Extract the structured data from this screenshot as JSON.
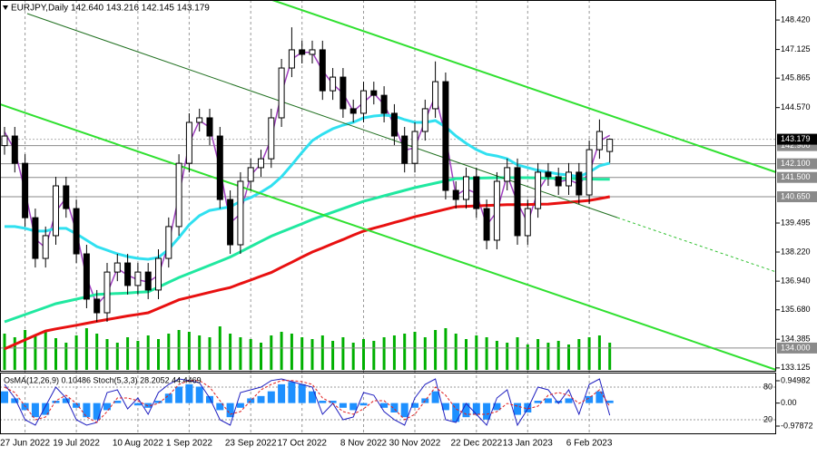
{
  "chart_data": {
    "type": "candlestick",
    "title": "EURJPY,Daily 142.640 143.216 142.145 143.179",
    "categories": [
      null,
      null,
      "27 Jun 2022",
      null,
      null,
      null,
      null,
      "19 Jul 2022",
      null,
      null,
      null,
      null,
      null,
      "10 Aug 2022",
      null,
      null,
      null,
      null,
      "1 Sep 2022",
      null,
      null,
      null,
      null,
      null,
      "23 Sep 2022",
      null,
      null,
      null,
      null,
      "17 Oct 2022",
      null,
      null,
      null,
      null,
      null,
      "8 Nov 2022",
      null,
      null,
      null,
      null,
      "30 Nov 2022",
      null,
      null,
      null,
      null,
      null,
      "22 Dec 2022",
      null,
      null,
      null,
      null,
      "13 Jan 2023",
      null,
      null,
      null,
      null,
      null,
      "6 Feb 2023",
      null,
      null
    ],
    "open": [
      142.9,
      143.32,
      142.12,
      139.73,
      137.94,
      138.94,
      141.13,
      140.13,
      138.14,
      136.15,
      135.55,
      137.34,
      137.74,
      136.75,
      137.34,
      136.55,
      137.94,
      139.34,
      142.12,
      143.92,
      144.12,
      143.32,
      140.53,
      138.54,
      141.33,
      141.93,
      142.32,
      144.12,
      146.31,
      147.11,
      146.91,
      147.11,
      145.31,
      145.91,
      144.52,
      144.32,
      145.31,
      145.11,
      144.32,
      143.32,
      142.12,
      143.52,
      144.52,
      145.71,
      140.93,
      140.53,
      141.53,
      140.13,
      138.74,
      141.33,
      141.93,
      138.94,
      140.13,
      141.73,
      141.53,
      141.13,
      141.73,
      140.73,
      142.72,
      142.64
    ],
    "high": [
      143.72,
      143.72,
      142.52,
      140.13,
      139.34,
      141.53,
      141.53,
      140.53,
      138.54,
      136.55,
      137.74,
      138.14,
      138.14,
      137.74,
      137.74,
      138.34,
      139.74,
      142.52,
      144.32,
      144.52,
      144.52,
      143.72,
      140.93,
      141.73,
      142.33,
      142.72,
      144.52,
      146.71,
      148.1,
      147.51,
      147.51,
      147.51,
      146.31,
      146.31,
      144.92,
      145.71,
      145.71,
      145.51,
      144.72,
      143.72,
      143.92,
      144.92,
      146.6,
      146.11,
      141.33,
      141.93,
      141.93,
      140.53,
      141.73,
      142.33,
      142.33,
      140.53,
      142.13,
      142.13,
      141.93,
      142.13,
      142.13,
      143.12,
      144.05,
      143.216
    ],
    "low": [
      142.5,
      141.72,
      139.33,
      137.54,
      137.54,
      138.54,
      139.73,
      137.74,
      135.75,
      135.15,
      135.15,
      136.94,
      136.35,
      136.35,
      136.15,
      136.15,
      137.54,
      138.94,
      141.72,
      143.52,
      142.92,
      140.13,
      138.14,
      138.14,
      140.93,
      141.53,
      141.92,
      143.72,
      145.91,
      146.51,
      146.51,
      144.91,
      144.91,
      144.12,
      143.92,
      143.92,
      144.71,
      143.92,
      142.92,
      141.72,
      141.72,
      143.12,
      144.12,
      140.53,
      140.13,
      140.13,
      139.73,
      138.34,
      138.34,
      140.93,
      138.54,
      138.54,
      139.73,
      141.13,
      140.73,
      140.73,
      140.33,
      140.33,
      142.32,
      142.145
    ],
    "close": [
      143.32,
      142.12,
      139.73,
      137.94,
      138.94,
      141.13,
      140.13,
      138.14,
      136.15,
      135.55,
      137.34,
      137.74,
      136.75,
      137.34,
      136.55,
      137.94,
      139.34,
      142.12,
      143.92,
      144.12,
      143.32,
      140.53,
      138.54,
      141.33,
      141.93,
      142.32,
      144.12,
      146.31,
      147.11,
      146.91,
      147.11,
      145.31,
      145.91,
      144.52,
      144.32,
      145.31,
      145.11,
      144.32,
      143.32,
      142.12,
      143.52,
      144.52,
      145.71,
      140.93,
      140.53,
      141.53,
      140.13,
      138.74,
      141.33,
      141.93,
      138.94,
      140.13,
      141.73,
      141.53,
      141.13,
      141.73,
      140.73,
      142.72,
      143.52,
      143.179
    ],
    "ylim": [
      132.96,
      149.3
    ],
    "yticks": [
      {
        "value": 148.42,
        "label": "148.420"
      },
      {
        "value": 147.125,
        "label": "147.125"
      },
      {
        "value": 145.865,
        "label": "145.865"
      },
      {
        "value": 144.57,
        "label": "144.570"
      },
      {
        "value": 139.495,
        "label": "139.495"
      },
      {
        "value": 138.22,
        "label": "138.220"
      },
      {
        "value": 136.94,
        "label": "136.940"
      },
      {
        "value": 135.68,
        "label": "135.680"
      },
      {
        "value": 134.385,
        "label": "134.385"
      },
      {
        "value": 133.125,
        "label": "133.125"
      }
    ],
    "lines": [
      {
        "color": "#a040c0",
        "values": [
          143.5,
          142.7,
          140.9,
          138.8,
          138.4,
          140.0,
          140.6,
          139.1,
          137.1,
          135.9,
          136.4,
          137.5,
          137.2,
          137.0,
          136.9,
          137.2,
          138.6,
          140.7,
          143.0,
          144.0,
          143.7,
          141.9,
          139.5,
          139.9,
          141.6,
          142.1,
          143.2,
          145.2,
          146.7,
          147.0,
          147.0,
          146.2,
          145.6,
          145.2,
          144.4,
          144.8,
          145.2,
          144.7,
          143.8,
          142.7,
          142.8,
          144.0,
          145.1,
          143.3,
          140.7,
          141.0,
          140.8,
          139.4,
          140.0,
          141.6,
          140.4,
          139.5,
          140.9,
          141.6,
          141.3,
          141.4,
          141.2,
          141.7,
          143.1,
          143.35
        ]
      },
      {
        "color": "#30e0f0",
        "values": [
          139.34,
          139.34,
          139.26,
          139.14,
          139.14,
          139.26,
          139.26,
          139.02,
          138.74,
          138.46,
          138.3,
          138.14,
          138.02,
          137.94,
          137.9,
          137.98,
          138.34,
          138.86,
          139.42,
          139.82,
          140.05,
          140.13,
          140.21,
          140.45,
          140.61,
          140.85,
          141.13,
          141.53,
          142.05,
          142.6,
          143.12,
          143.4,
          143.64,
          143.8,
          143.92,
          144.12,
          144.2,
          144.24,
          144.2,
          144.04,
          143.92,
          143.92,
          144.0,
          143.72,
          143.32,
          143.0,
          142.72,
          142.52,
          142.44,
          142.32,
          142.05,
          141.93,
          141.81,
          141.73,
          141.65,
          141.61,
          141.53,
          141.73,
          142.01,
          142.13
        ]
      },
      {
        "color": "#20e8a0",
        "values": [
          135.15,
          135.31,
          135.47,
          135.63,
          135.79,
          135.95,
          136.05,
          136.15,
          136.25,
          136.36,
          136.38,
          136.4,
          136.42,
          136.45,
          136.47,
          136.68,
          136.89,
          137.1,
          137.28,
          137.46,
          137.64,
          137.82,
          138.0,
          138.23,
          138.46,
          138.69,
          138.92,
          139.1,
          139.28,
          139.46,
          139.65,
          139.81,
          139.97,
          140.13,
          140.29,
          140.45,
          140.57,
          140.69,
          140.81,
          140.93,
          141.05,
          141.15,
          141.25,
          141.35,
          141.45,
          141.46,
          141.47,
          141.48,
          141.49,
          141.49,
          141.49,
          141.49,
          141.48,
          141.47,
          141.46,
          141.45,
          141.44,
          141.43,
          141.42,
          141.42
        ]
      },
      {
        "color": "#e81010",
        "values": [
          133.96,
          134.16,
          134.36,
          134.56,
          134.75,
          134.84,
          134.92,
          135.0,
          135.09,
          135.17,
          135.25,
          135.33,
          135.41,
          135.48,
          135.55,
          135.74,
          135.93,
          136.12,
          136.23,
          136.34,
          136.45,
          136.56,
          136.66,
          136.83,
          136.99,
          137.16,
          137.32,
          137.55,
          137.77,
          138.0,
          138.22,
          138.4,
          138.59,
          138.77,
          138.96,
          139.14,
          139.27,
          139.39,
          139.52,
          139.64,
          139.77,
          139.88,
          139.99,
          140.1,
          140.21,
          140.23,
          140.25,
          140.27,
          140.28,
          140.3,
          140.3,
          140.31,
          140.32,
          140.33,
          140.37,
          140.41,
          140.45,
          140.49,
          140.57,
          140.65
        ]
      }
    ],
    "levels": [
      {
        "value": 142.9,
        "label": "142.900"
      },
      {
        "value": 142.1,
        "label": "142.100"
      },
      {
        "value": 141.5,
        "label": "141.500"
      },
      {
        "value": 140.65,
        "label": "140.650"
      },
      {
        "value": 134.0,
        "label": "134.000"
      }
    ],
    "last_price": {
      "value": 143.179,
      "label": "143.179"
    },
    "volume": {
      "color": "#00b000",
      "values": [
        40,
        36,
        44,
        38,
        42,
        35,
        30,
        38,
        46,
        40,
        34,
        30,
        36,
        32,
        38,
        34,
        40,
        44,
        42,
        38,
        36,
        48,
        40,
        36,
        34,
        30,
        38,
        42,
        40,
        36,
        34,
        38,
        32,
        36,
        30,
        34,
        32,
        36,
        38,
        40,
        42,
        36,
        44,
        46,
        40,
        34,
        38,
        36,
        32,
        30,
        36,
        28,
        34,
        30,
        32,
        28,
        34,
        36,
        38,
        30
      ]
    },
    "indicator": {
      "title": "OsMA(12,26,9) 0.10486  Stoch(5,3,3) 28.2052 44.4469",
      "ylim": [
        -0.97872,
        0.94982
      ],
      "yticks": [
        0.94982,
        {
          "value": 0,
          "label": "0.00"
        },
        -0.97872
      ],
      "y2lim": [
        0,
        100
      ],
      "y2ticks": [
        80,
        20
      ],
      "osma": {
        "color": "#1e90ff",
        "values": [
          0.5,
          0.2,
          -0.3,
          -0.6,
          -0.5,
          0.1,
          0.2,
          -0.2,
          -0.6,
          -0.7,
          -0.3,
          0.1,
          0,
          -0.1,
          -0.2,
          0.1,
          0.4,
          0.7,
          0.8,
          0.7,
          0.3,
          -0.3,
          -0.6,
          -0.2,
          0.2,
          0.3,
          0.5,
          0.8,
          0.9,
          0.8,
          0.5,
          0.1,
          0.1,
          -0.2,
          -0.3,
          -0.1,
          0,
          -0.2,
          -0.4,
          -0.6,
          -0.2,
          0.2,
          0.5,
          -0.3,
          -0.8,
          -0.6,
          -0.5,
          -0.7,
          -0.3,
          0,
          -0.5,
          -0.4,
          0.1,
          0.2,
          0.1,
          0.2,
          0,
          0.3,
          0.5,
          0.10486
        ]
      },
      "stoch_main": {
        "color": "#2020c0",
        "values": [
          85,
          60,
          20,
          10,
          45,
          80,
          60,
          20,
          10,
          15,
          70,
          75,
          40,
          60,
          30,
          70,
          85,
          95,
          92,
          88,
          60,
          20,
          10,
          70,
          75,
          80,
          92,
          95,
          90,
          85,
          80,
          30,
          50,
          20,
          25,
          70,
          65,
          35,
          20,
          10,
          60,
          85,
          95,
          20,
          15,
          50,
          30,
          10,
          60,
          75,
          10,
          40,
          80,
          75,
          50,
          75,
          30,
          85,
          95,
          28.2052
        ]
      },
      "stoch_signal": {
        "color": "#e02020",
        "values": [
          80,
          70,
          45,
          20,
          25,
          55,
          65,
          50,
          25,
          15,
          35,
          60,
          60,
          55,
          45,
          50,
          65,
          85,
          92,
          92,
          80,
          55,
          30,
          35,
          55,
          75,
          85,
          92,
          92,
          90,
          85,
          60,
          50,
          35,
          30,
          40,
          55,
          55,
          40,
          20,
          30,
          55,
          80,
          65,
          40,
          30,
          30,
          30,
          35,
          50,
          45,
          40,
          45,
          65,
          70,
          65,
          50,
          60,
          75,
          44.4469
        ]
      }
    }
  }
}
